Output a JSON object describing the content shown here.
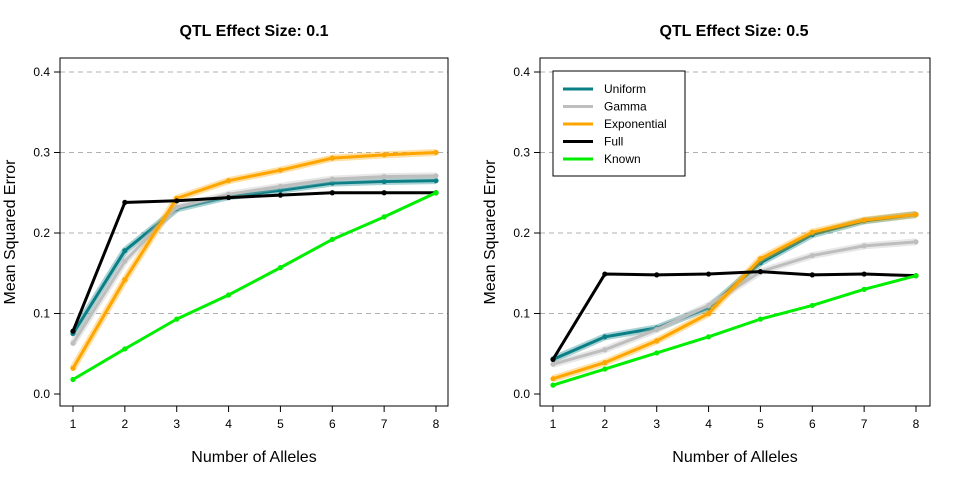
{
  "chart_data": [
    {
      "type": "line",
      "title": "QTL Effect Size: 0.1",
      "xlabel": "Number of Alleles",
      "ylabel": "Mean Squared Error",
      "x": [
        1,
        2,
        3,
        4,
        5,
        6,
        7,
        8
      ],
      "xlim": [
        1,
        8
      ],
      "ylim": [
        0,
        0.4
      ],
      "yticks": [
        "0.0",
        "0.1",
        "0.2",
        "0.3",
        "0.4"
      ],
      "grid": "horizontal dashed",
      "series": [
        {
          "name": "Uniform",
          "color": "#0a7f86",
          "values": [
            0.075,
            0.178,
            0.23,
            0.245,
            0.253,
            0.262,
            0.264,
            0.265
          ]
        },
        {
          "name": "Gamma",
          "color": "#bebebe",
          "values": [
            0.063,
            0.165,
            0.232,
            0.248,
            0.258,
            0.267,
            0.27,
            0.271
          ]
        },
        {
          "name": "Exponential",
          "color": "#ffa500",
          "values": [
            0.032,
            0.142,
            0.243,
            0.265,
            0.278,
            0.293,
            0.297,
            0.3
          ]
        },
        {
          "name": "Full",
          "color": "#000000",
          "values": [
            0.078,
            0.238,
            0.24,
            0.244,
            0.247,
            0.25,
            0.25,
            0.25
          ]
        },
        {
          "name": "Known",
          "color": "#00ee00",
          "values": [
            0.018,
            0.056,
            0.093,
            0.123,
            0.157,
            0.192,
            0.22,
            0.25
          ]
        }
      ]
    },
    {
      "type": "line",
      "title": "QTL Effect Size: 0.5",
      "xlabel": "Number of Alleles",
      "ylabel": "Mean Squared Error",
      "x": [
        1,
        2,
        3,
        4,
        5,
        6,
        7,
        8
      ],
      "xlim": [
        1,
        8
      ],
      "ylim": [
        0,
        0.4
      ],
      "yticks": [
        "0.0",
        "0.1",
        "0.2",
        "0.3",
        "0.4"
      ],
      "grid": "horizontal dashed",
      "legend": "top-left",
      "series": [
        {
          "name": "Uniform",
          "color": "#0a7f86",
          "values": [
            0.043,
            0.071,
            0.082,
            0.107,
            0.163,
            0.198,
            0.215,
            0.223
          ]
        },
        {
          "name": "Gamma",
          "color": "#bebebe",
          "values": [
            0.037,
            0.055,
            0.08,
            0.11,
            0.152,
            0.172,
            0.184,
            0.189
          ]
        },
        {
          "name": "Exponential",
          "color": "#ffa500",
          "values": [
            0.019,
            0.039,
            0.066,
            0.1,
            0.168,
            0.201,
            0.216,
            0.223
          ]
        },
        {
          "name": "Full",
          "color": "#000000",
          "values": [
            0.043,
            0.149,
            0.148,
            0.149,
            0.152,
            0.148,
            0.149,
            0.147
          ]
        },
        {
          "name": "Known",
          "color": "#00ee00",
          "values": [
            0.011,
            0.031,
            0.051,
            0.071,
            0.093,
            0.11,
            0.13,
            0.147
          ]
        }
      ]
    }
  ]
}
